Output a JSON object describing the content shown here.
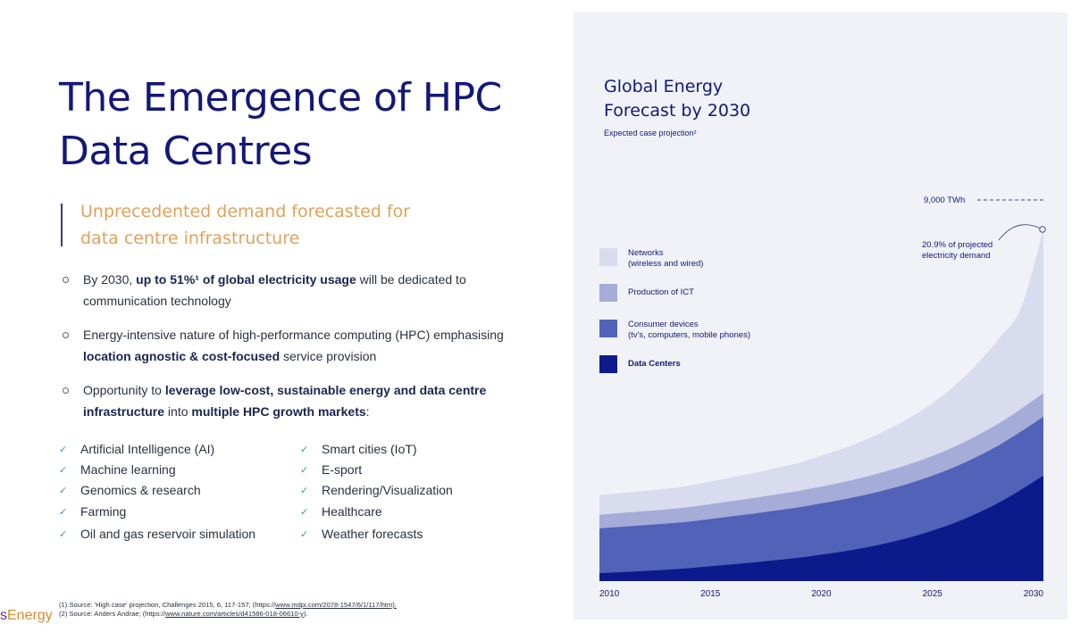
{
  "slide": {
    "title_line1": "The Emergence of HPC",
    "title_line2": "Data Centres",
    "subtitle_line1": "Unprecedented demand forecasted for",
    "subtitle_line2": "data centre infrastructure",
    "bullets": [
      {
        "parts": [
          "By 2030, ",
          "up to 51%¹ of global electricity usage",
          " will be dedicated to communication technology"
        ],
        "bold": [
          false,
          true,
          false
        ]
      },
      {
        "parts": [
          "Energy-intensive nature of high-performance computing (HPC) emphasising ",
          "location agnostic & cost-focused",
          " service provision"
        ],
        "bold": [
          false,
          true,
          false
        ]
      },
      {
        "parts": [
          "Opportunity to ",
          "leverage low-cost, sustainable energy and data centre infrastructure",
          " into ",
          "multiple HPC growth markets",
          ":"
        ],
        "bold": [
          false,
          true,
          false,
          true,
          false
        ]
      }
    ],
    "markets_col1": [
      "Artificial Intelligence (AI)",
      "Machine learning",
      "Genomics & research",
      "Farming",
      "Oil and gas reservoir simulation"
    ],
    "markets_col2": [
      "Smart cities (IoT)",
      "E-sport",
      "Rendering/Visualization",
      "Healthcare",
      "Weather forecasts"
    ],
    "check_icon": "checkmark-icon",
    "logo_prefix": "s",
    "logo_text": "Energy",
    "footnote1": "(1) Source: 'High case' projection, Challenges 2015, 6, 117-157; (https://",
    "footnote1_link": "www.mdpi.com/2078-1547/6/1/117/htm).",
    "footnote2": "(2) Source: Anders Andrae; (https://",
    "footnote2_link": "www.nature.com/articles/d41586-018-06610-y",
    "footnote2_end": ").",
    "colors": {
      "title": "#14177a",
      "subtitle": "#e0a25a",
      "panel": "#f1f2f8"
    }
  },
  "chart_data": {
    "type": "area",
    "stacked": true,
    "title_line1": "Global Energy",
    "title_line2": "Forecast by 2030",
    "subtitle": "Expected case projection²",
    "x_ticks": [
      "2010",
      "2015",
      "2020",
      "2025",
      "2030"
    ],
    "x": [
      2010,
      2011,
      2012,
      2013,
      2014,
      2015,
      2016,
      2017,
      2018,
      2019,
      2020,
      2021,
      2022,
      2023,
      2024,
      2025,
      2026,
      2027,
      2028,
      2029,
      2030
    ],
    "ylim": [
      0,
      9000
    ],
    "y_reference": {
      "value": 9000,
      "label": "9,000 TWh"
    },
    "annotation_line1": "20.9% of projected",
    "annotation_line2": "electricity demand",
    "series": [
      {
        "name": "Data Centers",
        "color": "#0d1a8c",
        "values": [
          200,
          230,
          260,
          290,
          330,
          380,
          430,
          480,
          540,
          600,
          680,
          760,
          860,
          980,
          1120,
          1290,
          1490,
          1730,
          2010,
          2340,
          2700
        ]
      },
      {
        "name": "Consumer devices",
        "name_line2": "(tv's, computers, mobile phones)",
        "color": "#5262b8",
        "values": [
          1150,
          1160,
          1170,
          1180,
          1190,
          1210,
          1230,
          1250,
          1270,
          1290,
          1310,
          1330,
          1350,
          1370,
          1390,
          1410,
          1430,
          1450,
          1470,
          1490,
          1510
        ]
      },
      {
        "name": "Production of ICT",
        "color": "#a6acd8",
        "values": [
          350,
          355,
          360,
          365,
          370,
          380,
          390,
          400,
          410,
          420,
          430,
          445,
          460,
          475,
          490,
          505,
          520,
          540,
          560,
          580,
          600
        ]
      },
      {
        "name": "Networks",
        "name_line2": "(wireless and wired)",
        "color": "#d9dbef",
        "values": [
          500,
          510,
          520,
          530,
          550,
          580,
          610,
          640,
          680,
          720,
          790,
          860,
          950,
          1060,
          1190,
          1350,
          1560,
          1830,
          2170,
          2590,
          4190
        ]
      }
    ]
  }
}
